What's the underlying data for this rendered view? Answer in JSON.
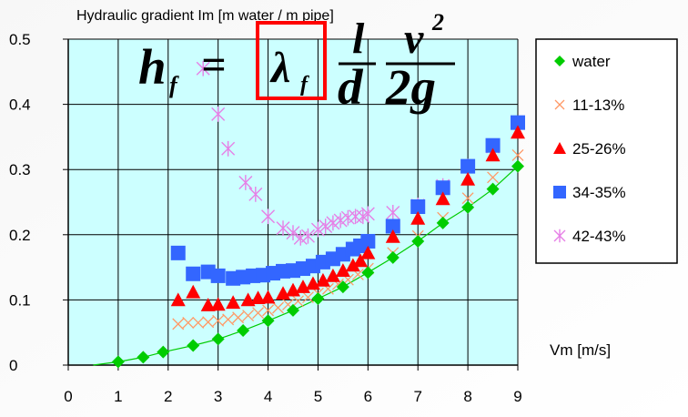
{
  "chart_data": {
    "type": "scatter",
    "title": "Hydraulic gradient Im [m water / m pipe]",
    "xlabel": "Vm [m/s]",
    "ylabel": "",
    "xlim": [
      0,
      9
    ],
    "ylim": [
      0,
      0.5
    ],
    "x_ticks": [
      "0",
      "1",
      "2",
      "3",
      "4",
      "5",
      "6",
      "7",
      "8",
      "9"
    ],
    "y_ticks": [
      "0",
      "0.1",
      "0.2",
      "0.3",
      "0.4",
      "0.5"
    ],
    "grid": true,
    "legend_position": "right",
    "series": [
      {
        "name": "water",
        "marker": "diamond",
        "color": "#00cc00",
        "points": [
          [
            1.0,
            0.005
          ],
          [
            1.5,
            0.012
          ],
          [
            1.9,
            0.02
          ],
          [
            2.5,
            0.03
          ],
          [
            3.0,
            0.04
          ],
          [
            3.5,
            0.053
          ],
          [
            4.0,
            0.068
          ],
          [
            4.5,
            0.084
          ],
          [
            5.0,
            0.102
          ],
          [
            5.5,
            0.12
          ],
          [
            6.0,
            0.142
          ],
          [
            6.5,
            0.165
          ],
          [
            7.0,
            0.19
          ],
          [
            7.5,
            0.218
          ],
          [
            8.0,
            0.242
          ],
          [
            8.5,
            0.27
          ],
          [
            9.0,
            0.305
          ]
        ]
      },
      {
        "name": "11-13%",
        "marker": "x",
        "color": "#ff9966",
        "points": [
          [
            2.2,
            0.063
          ],
          [
            2.4,
            0.065
          ],
          [
            2.6,
            0.065
          ],
          [
            2.8,
            0.066
          ],
          [
            3.0,
            0.068
          ],
          [
            3.2,
            0.07
          ],
          [
            3.4,
            0.073
          ],
          [
            3.6,
            0.076
          ],
          [
            3.8,
            0.08
          ],
          [
            4.0,
            0.084
          ],
          [
            4.2,
            0.088
          ],
          [
            4.4,
            0.093
          ],
          [
            4.6,
            0.098
          ],
          [
            4.8,
            0.104
          ],
          [
            5.0,
            0.11
          ],
          [
            5.2,
            0.117
          ],
          [
            5.4,
            0.124
          ],
          [
            5.6,
            0.131
          ],
          [
            5.8,
            0.139
          ],
          [
            6.0,
            0.148
          ],
          [
            6.5,
            0.172
          ],
          [
            7.0,
            0.198
          ],
          [
            7.5,
            0.226
          ],
          [
            8.0,
            0.256
          ],
          [
            8.5,
            0.288
          ],
          [
            9.0,
            0.322
          ]
        ]
      },
      {
        "name": "25-26%",
        "marker": "triangle",
        "color": "#ff0000",
        "points": [
          [
            2.2,
            0.1
          ],
          [
            2.5,
            0.112
          ],
          [
            2.8,
            0.092
          ],
          [
            3.0,
            0.093
          ],
          [
            3.3,
            0.096
          ],
          [
            3.6,
            0.1
          ],
          [
            3.8,
            0.103
          ],
          [
            4.0,
            0.104
          ],
          [
            4.3,
            0.11
          ],
          [
            4.5,
            0.115
          ],
          [
            4.7,
            0.12
          ],
          [
            4.9,
            0.125
          ],
          [
            5.1,
            0.13
          ],
          [
            5.3,
            0.137
          ],
          [
            5.5,
            0.145
          ],
          [
            5.7,
            0.153
          ],
          [
            5.85,
            0.16
          ],
          [
            6.0,
            0.172
          ],
          [
            6.5,
            0.197
          ],
          [
            7.0,
            0.225
          ],
          [
            7.5,
            0.255
          ],
          [
            8.0,
            0.285
          ],
          [
            8.5,
            0.322
          ],
          [
            9.0,
            0.357
          ]
        ]
      },
      {
        "name": "34-35%",
        "marker": "square",
        "color": "#3366ff",
        "points": [
          [
            2.2,
            0.172
          ],
          [
            2.5,
            0.14
          ],
          [
            2.8,
            0.143
          ],
          [
            3.0,
            0.137
          ],
          [
            3.3,
            0.133
          ],
          [
            3.5,
            0.135
          ],
          [
            3.7,
            0.137
          ],
          [
            3.9,
            0.138
          ],
          [
            4.1,
            0.141
          ],
          [
            4.3,
            0.144
          ],
          [
            4.5,
            0.145
          ],
          [
            4.7,
            0.148
          ],
          [
            4.9,
            0.152
          ],
          [
            5.1,
            0.158
          ],
          [
            5.3,
            0.163
          ],
          [
            5.5,
            0.17
          ],
          [
            5.7,
            0.178
          ],
          [
            5.85,
            0.183
          ],
          [
            6.0,
            0.19
          ],
          [
            6.5,
            0.213
          ],
          [
            7.0,
            0.243
          ],
          [
            7.5,
            0.272
          ],
          [
            8.0,
            0.305
          ],
          [
            8.5,
            0.337
          ],
          [
            9.0,
            0.372
          ]
        ]
      },
      {
        "name": "42-43%",
        "marker": "asterisk",
        "color": "#e680e6",
        "points": [
          [
            2.7,
            0.455
          ],
          [
            3.0,
            0.385
          ],
          [
            3.2,
            0.332
          ],
          [
            3.55,
            0.28
          ],
          [
            3.75,
            0.262
          ],
          [
            4.0,
            0.228
          ],
          [
            4.3,
            0.21
          ],
          [
            4.5,
            0.203
          ],
          [
            4.65,
            0.195
          ],
          [
            4.8,
            0.198
          ],
          [
            5.0,
            0.208
          ],
          [
            5.15,
            0.213
          ],
          [
            5.3,
            0.218
          ],
          [
            5.45,
            0.222
          ],
          [
            5.6,
            0.226
          ],
          [
            5.75,
            0.228
          ],
          [
            5.9,
            0.228
          ],
          [
            6.0,
            0.232
          ],
          [
            6.5,
            0.234
          ],
          [
            7.0,
            0.245
          ],
          [
            7.5,
            0.275
          ],
          [
            8.0,
            0.305
          ],
          [
            8.5,
            0.335
          ]
        ]
      }
    ]
  },
  "formula": {
    "lhs": "h",
    "lhs_sub": "f",
    "equals": "=",
    "lambda": "λ",
    "lambda_sub": "f",
    "num1": "l",
    "den1": "d",
    "num2": "v",
    "num2_sup": "2",
    "den2": "2g"
  },
  "colors": {
    "plot_bg": "#ccffff",
    "grid": "#000000",
    "highlight_box": "#ff0000",
    "water_line": "#00cc00",
    "text": "#000000"
  }
}
